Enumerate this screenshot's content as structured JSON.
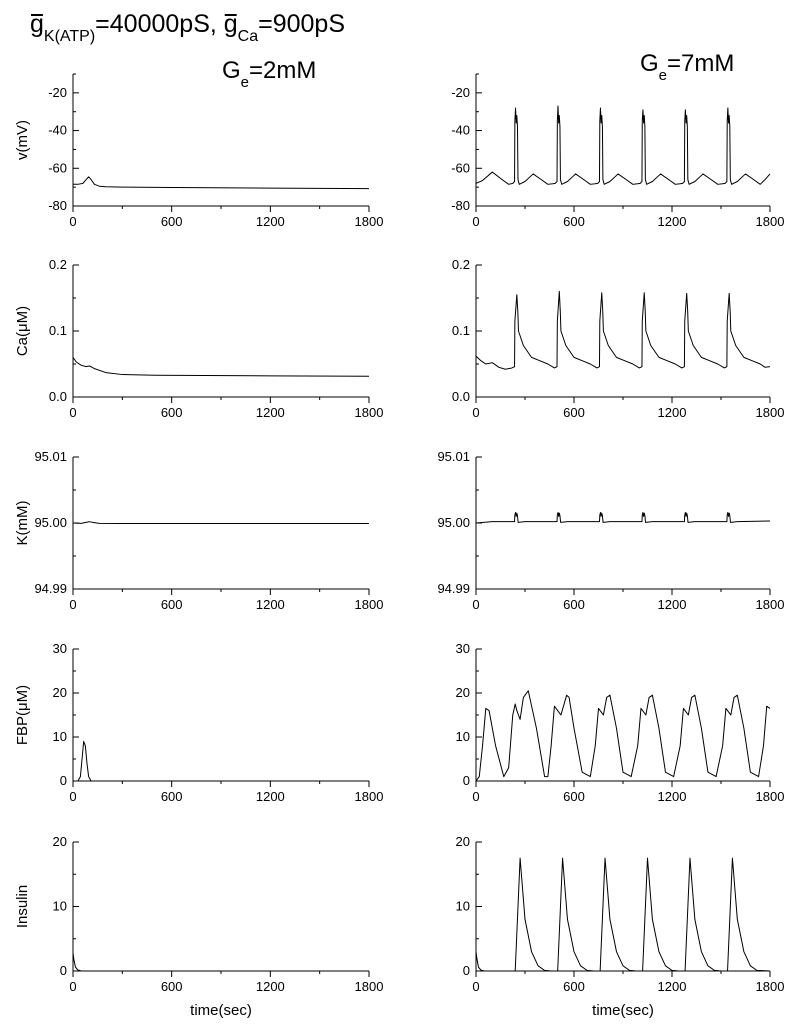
{
  "header": {
    "title_parts": [
      {
        "text": "g",
        "kind": "g"
      },
      {
        "text": "K(ATP)",
        "kind": "sub"
      },
      {
        "text": "=40000pS, ",
        "kind": "main"
      },
      {
        "text": "g",
        "kind": "g"
      },
      {
        "text": "Ca",
        "kind": "sub"
      },
      {
        "text": "=900pS",
        "kind": "main"
      }
    ],
    "col_titles": [
      {
        "base": "G",
        "sub": "e",
        "rest": "=2mM"
      },
      {
        "base": "G",
        "sub": "e",
        "rest": "=7mM"
      }
    ]
  },
  "chart_data": [
    {
      "type": "line",
      "id": "v-left",
      "ylabel": "v(mV)",
      "xlabel": "",
      "xlim": [
        0,
        1800
      ],
      "ylim": [
        -80,
        -10
      ],
      "xticks": [
        0,
        600,
        1200,
        1800
      ],
      "yticks": [
        -80,
        -60,
        -40,
        -20
      ],
      "ytick_labels": [
        "-80",
        "-60",
        "-40",
        "-20"
      ],
      "series": [
        {
          "x": [
            0,
            30,
            60,
            80,
            95,
            110,
            130,
            160,
            200,
            300,
            600,
            1200,
            1800
          ],
          "y": [
            -68.5,
            -68.5,
            -68,
            -66,
            -64.5,
            -66,
            -68.5,
            -69.5,
            -69.8,
            -70,
            -70.2,
            -70.5,
            -70.8
          ]
        }
      ]
    },
    {
      "type": "line",
      "id": "v-right",
      "ylabel": "",
      "xlabel": "",
      "xlim": [
        0,
        1800
      ],
      "ylim": [
        -80,
        -10
      ],
      "xticks": [
        0,
        600,
        1200,
        1800
      ],
      "yticks": [
        -80,
        -60,
        -40,
        -20
      ],
      "ytick_labels": [
        "-80",
        "-60",
        "-40",
        "-20"
      ],
      "series": [
        {
          "x": [
            0,
            40,
            100,
            160,
            200,
            225,
            236,
            238,
            242,
            246,
            250,
            254,
            257,
            265,
            300,
            350,
            400,
            440,
            470,
            485,
            496,
            498,
            502,
            506,
            510,
            514,
            517,
            525,
            560,
            610,
            660,
            700,
            730,
            745,
            756,
            758,
            762,
            766,
            770,
            774,
            777,
            785,
            820,
            870,
            920,
            960,
            990,
            1005,
            1016,
            1018,
            1022,
            1026,
            1030,
            1034,
            1037,
            1045,
            1080,
            1130,
            1180,
            1220,
            1250,
            1265,
            1276,
            1278,
            1282,
            1286,
            1290,
            1294,
            1297,
            1305,
            1340,
            1390,
            1440,
            1480,
            1510,
            1525,
            1536,
            1538,
            1542,
            1546,
            1550,
            1554,
            1557,
            1565,
            1600,
            1650,
            1700,
            1740,
            1770,
            1800
          ],
          "y": [
            -68,
            -66.5,
            -62,
            -66,
            -68.5,
            -68,
            -67,
            -35,
            -28,
            -36,
            -32,
            -38,
            -66,
            -68.5,
            -67,
            -63,
            -66,
            -68.5,
            -68.2,
            -68,
            -67,
            -35,
            -27,
            -36,
            -32,
            -38,
            -66,
            -68.5,
            -67,
            -63,
            -66,
            -68.5,
            -68.2,
            -68,
            -67,
            -35,
            -28,
            -36,
            -32,
            -38,
            -66,
            -68.5,
            -67,
            -63,
            -66,
            -68.5,
            -68.2,
            -68,
            -67,
            -35,
            -29,
            -36,
            -32,
            -38,
            -66,
            -68.5,
            -67,
            -63,
            -66,
            -68.5,
            -68.2,
            -68,
            -67,
            -35,
            -29,
            -36,
            -32,
            -38,
            -66,
            -68.5,
            -67,
            -63,
            -66,
            -68.5,
            -68.2,
            -68,
            -67,
            -35,
            -28,
            -36,
            -32,
            -38,
            -66,
            -68.5,
            -67,
            -63,
            -66,
            -68.5,
            -66,
            -63
          ]
        }
      ]
    },
    {
      "type": "line",
      "id": "ca-left",
      "ylabel": "Ca(μM)",
      "xlabel": "",
      "xlim": [
        0,
        1800
      ],
      "ylim": [
        0,
        0.2
      ],
      "xticks": [
        0,
        600,
        1200,
        1800
      ],
      "yticks": [
        0,
        0.1,
        0.2
      ],
      "ytick_labels": [
        "0.0",
        "0.1",
        "0.2"
      ],
      "series": [
        {
          "x": [
            0,
            20,
            50,
            80,
            100,
            130,
            200,
            300,
            500,
            800,
            1200,
            1800
          ],
          "y": [
            0.06,
            0.053,
            0.048,
            0.046,
            0.047,
            0.043,
            0.037,
            0.034,
            0.033,
            0.0325,
            0.032,
            0.0315
          ]
        }
      ]
    },
    {
      "type": "line",
      "id": "ca-right",
      "ylabel": "",
      "xlabel": "",
      "xlim": [
        0,
        1800
      ],
      "ylim": [
        0,
        0.2
      ],
      "xticks": [
        0,
        600,
        1200,
        1800
      ],
      "yticks": [
        0,
        0.1,
        0.2
      ],
      "ytick_labels": [
        "0.0",
        "0.1",
        "0.2"
      ],
      "series": [
        {
          "x": [
            0,
            30,
            60,
            100,
            140,
            180,
            220,
            236,
            238,
            250,
            256,
            260,
            290,
            340,
            390,
            440,
            480,
            496,
            498,
            510,
            516,
            520,
            550,
            600,
            650,
            700,
            740,
            756,
            758,
            770,
            776,
            780,
            810,
            860,
            910,
            960,
            1000,
            1016,
            1018,
            1030,
            1036,
            1040,
            1070,
            1120,
            1170,
            1220,
            1260,
            1276,
            1278,
            1290,
            1296,
            1300,
            1330,
            1380,
            1430,
            1480,
            1520,
            1536,
            1538,
            1550,
            1556,
            1560,
            1590,
            1640,
            1690,
            1740,
            1770,
            1800
          ],
          "y": [
            0.062,
            0.055,
            0.05,
            0.052,
            0.045,
            0.042,
            0.044,
            0.046,
            0.115,
            0.155,
            0.13,
            0.1,
            0.078,
            0.06,
            0.055,
            0.05,
            0.044,
            0.046,
            0.115,
            0.16,
            0.13,
            0.1,
            0.078,
            0.06,
            0.055,
            0.05,
            0.044,
            0.046,
            0.115,
            0.158,
            0.13,
            0.1,
            0.078,
            0.06,
            0.055,
            0.05,
            0.044,
            0.046,
            0.115,
            0.158,
            0.13,
            0.1,
            0.078,
            0.06,
            0.055,
            0.05,
            0.044,
            0.046,
            0.115,
            0.157,
            0.13,
            0.1,
            0.078,
            0.06,
            0.055,
            0.05,
            0.044,
            0.046,
            0.115,
            0.157,
            0.13,
            0.1,
            0.078,
            0.06,
            0.055,
            0.05,
            0.045,
            0.046
          ]
        }
      ]
    },
    {
      "type": "line",
      "id": "k-left",
      "ylabel": "K(mM)",
      "xlabel": "",
      "xlim": [
        0,
        1800
      ],
      "ylim": [
        94.99,
        95.01
      ],
      "xticks": [
        0,
        600,
        1200,
        1800
      ],
      "yticks": [
        94.99,
        95.0,
        95.01
      ],
      "ytick_labels": [
        "94.99",
        "95.00",
        "95.01"
      ],
      "series": [
        {
          "x": [
            0,
            50,
            90,
            100,
            120,
            160,
            300,
            1800
          ],
          "y": [
            95.0,
            94.99995,
            95.00015,
            95.0002,
            95.0001,
            94.99995,
            94.99993,
            94.99993
          ]
        }
      ]
    },
    {
      "type": "line",
      "id": "k-right",
      "ylabel": "",
      "xlabel": "",
      "xlim": [
        0,
        1800
      ],
      "ylim": [
        94.99,
        95.01
      ],
      "xticks": [
        0,
        600,
        1200,
        1800
      ],
      "yticks": [
        94.99,
        95.0,
        95.01
      ],
      "ytick_labels": [
        "94.99",
        "95.00",
        "95.01"
      ],
      "series": [
        {
          "x": [
            0,
            100,
            236,
            238,
            242,
            246,
            250,
            254,
            258,
            300,
            496,
            498,
            502,
            506,
            510,
            514,
            518,
            560,
            756,
            758,
            762,
            766,
            770,
            774,
            778,
            820,
            1016,
            1018,
            1022,
            1026,
            1030,
            1034,
            1038,
            1080,
            1276,
            1278,
            1282,
            1286,
            1290,
            1294,
            1298,
            1340,
            1536,
            1538,
            1542,
            1546,
            1550,
            1554,
            1558,
            1600,
            1800
          ],
          "y": [
            95.0,
            95.0002,
            95.0002,
            95.0012,
            95.0016,
            95.001,
            95.0015,
            95.0011,
            95.0001,
            95.0002,
            95.0002,
            95.0012,
            95.0016,
            95.001,
            95.0015,
            95.0011,
            95.0001,
            95.0002,
            95.0002,
            95.0012,
            95.0016,
            95.001,
            95.0015,
            95.0011,
            95.0001,
            95.0002,
            95.0002,
            95.0012,
            95.0016,
            95.001,
            95.0015,
            95.0011,
            95.0001,
            95.0002,
            95.0002,
            95.0012,
            95.0016,
            95.001,
            95.0015,
            95.0011,
            95.0001,
            95.0002,
            95.0002,
            95.0012,
            95.0016,
            95.001,
            95.0015,
            95.0011,
            95.0001,
            95.0002,
            95.0003
          ]
        }
      ]
    },
    {
      "type": "line",
      "id": "fbp-left",
      "ylabel": "FBP(μM)",
      "xlabel": "",
      "xlim": [
        0,
        1800
      ],
      "ylim": [
        0,
        30
      ],
      "xticks": [
        0,
        600,
        1200,
        1800
      ],
      "yticks": [
        0,
        10,
        20,
        30
      ],
      "ytick_labels": [
        "0",
        "10",
        "20",
        "30"
      ],
      "series": [
        {
          "x": [
            0,
            30,
            45,
            55,
            65,
            75,
            85,
            95,
            110,
            200,
            1800
          ],
          "y": [
            0,
            0,
            1,
            5,
            9,
            8,
            4,
            1,
            0,
            0,
            0
          ]
        }
      ]
    },
    {
      "type": "line",
      "id": "fbp-right",
      "ylabel": "",
      "xlabel": "",
      "xlim": [
        0,
        1800
      ],
      "ylim": [
        0,
        30
      ],
      "xticks": [
        0,
        600,
        1200,
        1800
      ],
      "yticks": [
        0,
        10,
        20,
        30
      ],
      "ytick_labels": [
        "0",
        "10",
        "20",
        "30"
      ],
      "series": [
        {
          "x": [
            0,
            20,
            40,
            60,
            80,
            120,
            170,
            200,
            225,
            240,
            250,
            270,
            290,
            320,
            370,
            420,
            440,
            460,
            480,
            500,
            520,
            555,
            570,
            600,
            650,
            700,
            730,
            750,
            760,
            780,
            800,
            820,
            860,
            900,
            950,
            990,
            1010,
            1020,
            1040,
            1060,
            1080,
            1120,
            1160,
            1210,
            1250,
            1270,
            1280,
            1300,
            1320,
            1340,
            1380,
            1420,
            1470,
            1510,
            1530,
            1540,
            1560,
            1580,
            1600,
            1640,
            1680,
            1730,
            1760,
            1780,
            1800
          ],
          "y": [
            0,
            1,
            8,
            16.5,
            16,
            8,
            1,
            3,
            15,
            17.5,
            16,
            14,
            19,
            20.5,
            12,
            1,
            1,
            8,
            17,
            16,
            15,
            19.5,
            19,
            12,
            2,
            1,
            8,
            16.5,
            16,
            15,
            19,
            19.5,
            12,
            2,
            1,
            8,
            16.5,
            16,
            15,
            19,
            19.5,
            12,
            2,
            1,
            8,
            16.5,
            16,
            15,
            19,
            19.5,
            12,
            2,
            1,
            8,
            16.5,
            16,
            15,
            19,
            19.5,
            12,
            2,
            1,
            8,
            17,
            16.5
          ]
        }
      ]
    },
    {
      "type": "line",
      "id": "ins-left",
      "ylabel": "Insulin",
      "xlabel": "time(sec)",
      "xlim": [
        0,
        1800
      ],
      "ylim": [
        0,
        20
      ],
      "xticks": [
        0,
        600,
        1200,
        1800
      ],
      "yticks": [
        0,
        10,
        20
      ],
      "ytick_labels": [
        "0",
        "10",
        "20"
      ],
      "series": [
        {
          "x": [
            0,
            5,
            15,
            30,
            50,
            100,
            1800
          ],
          "y": [
            2.8,
            1.8,
            0.6,
            0.15,
            0,
            0,
            0
          ]
        }
      ]
    },
    {
      "type": "line",
      "id": "ins-right",
      "ylabel": "",
      "xlabel": "time(sec)",
      "xlim": [
        0,
        1800
      ],
      "ylim": [
        0,
        20
      ],
      "xticks": [
        0,
        600,
        1200,
        1800
      ],
      "yticks": [
        0,
        10,
        20
      ],
      "ytick_labels": [
        "0",
        "10",
        "20"
      ],
      "series": [
        {
          "x": [
            0,
            5,
            15,
            30,
            50,
            240,
            270,
            300,
            340,
            380,
            420,
            460,
            500,
            530,
            560,
            600,
            640,
            680,
            720,
            760,
            790,
            820,
            860,
            900,
            940,
            980,
            1020,
            1050,
            1080,
            1120,
            1160,
            1200,
            1240,
            1280,
            1310,
            1340,
            1380,
            1420,
            1460,
            1500,
            1540,
            1570,
            1600,
            1640,
            1680,
            1720,
            1800
          ],
          "y": [
            3,
            2,
            0.6,
            0.15,
            0,
            0,
            17.5,
            8,
            3,
            0.8,
            0.1,
            0,
            0,
            17.5,
            8,
            3,
            0.8,
            0.1,
            0,
            0,
            17.5,
            8,
            3,
            0.8,
            0.1,
            0,
            0,
            17.5,
            8,
            3,
            0.8,
            0.1,
            0,
            0,
            17.5,
            8,
            3,
            0.8,
            0.1,
            0,
            0,
            17.5,
            8,
            3,
            0.8,
            0.1,
            0
          ]
        }
      ]
    }
  ]
}
